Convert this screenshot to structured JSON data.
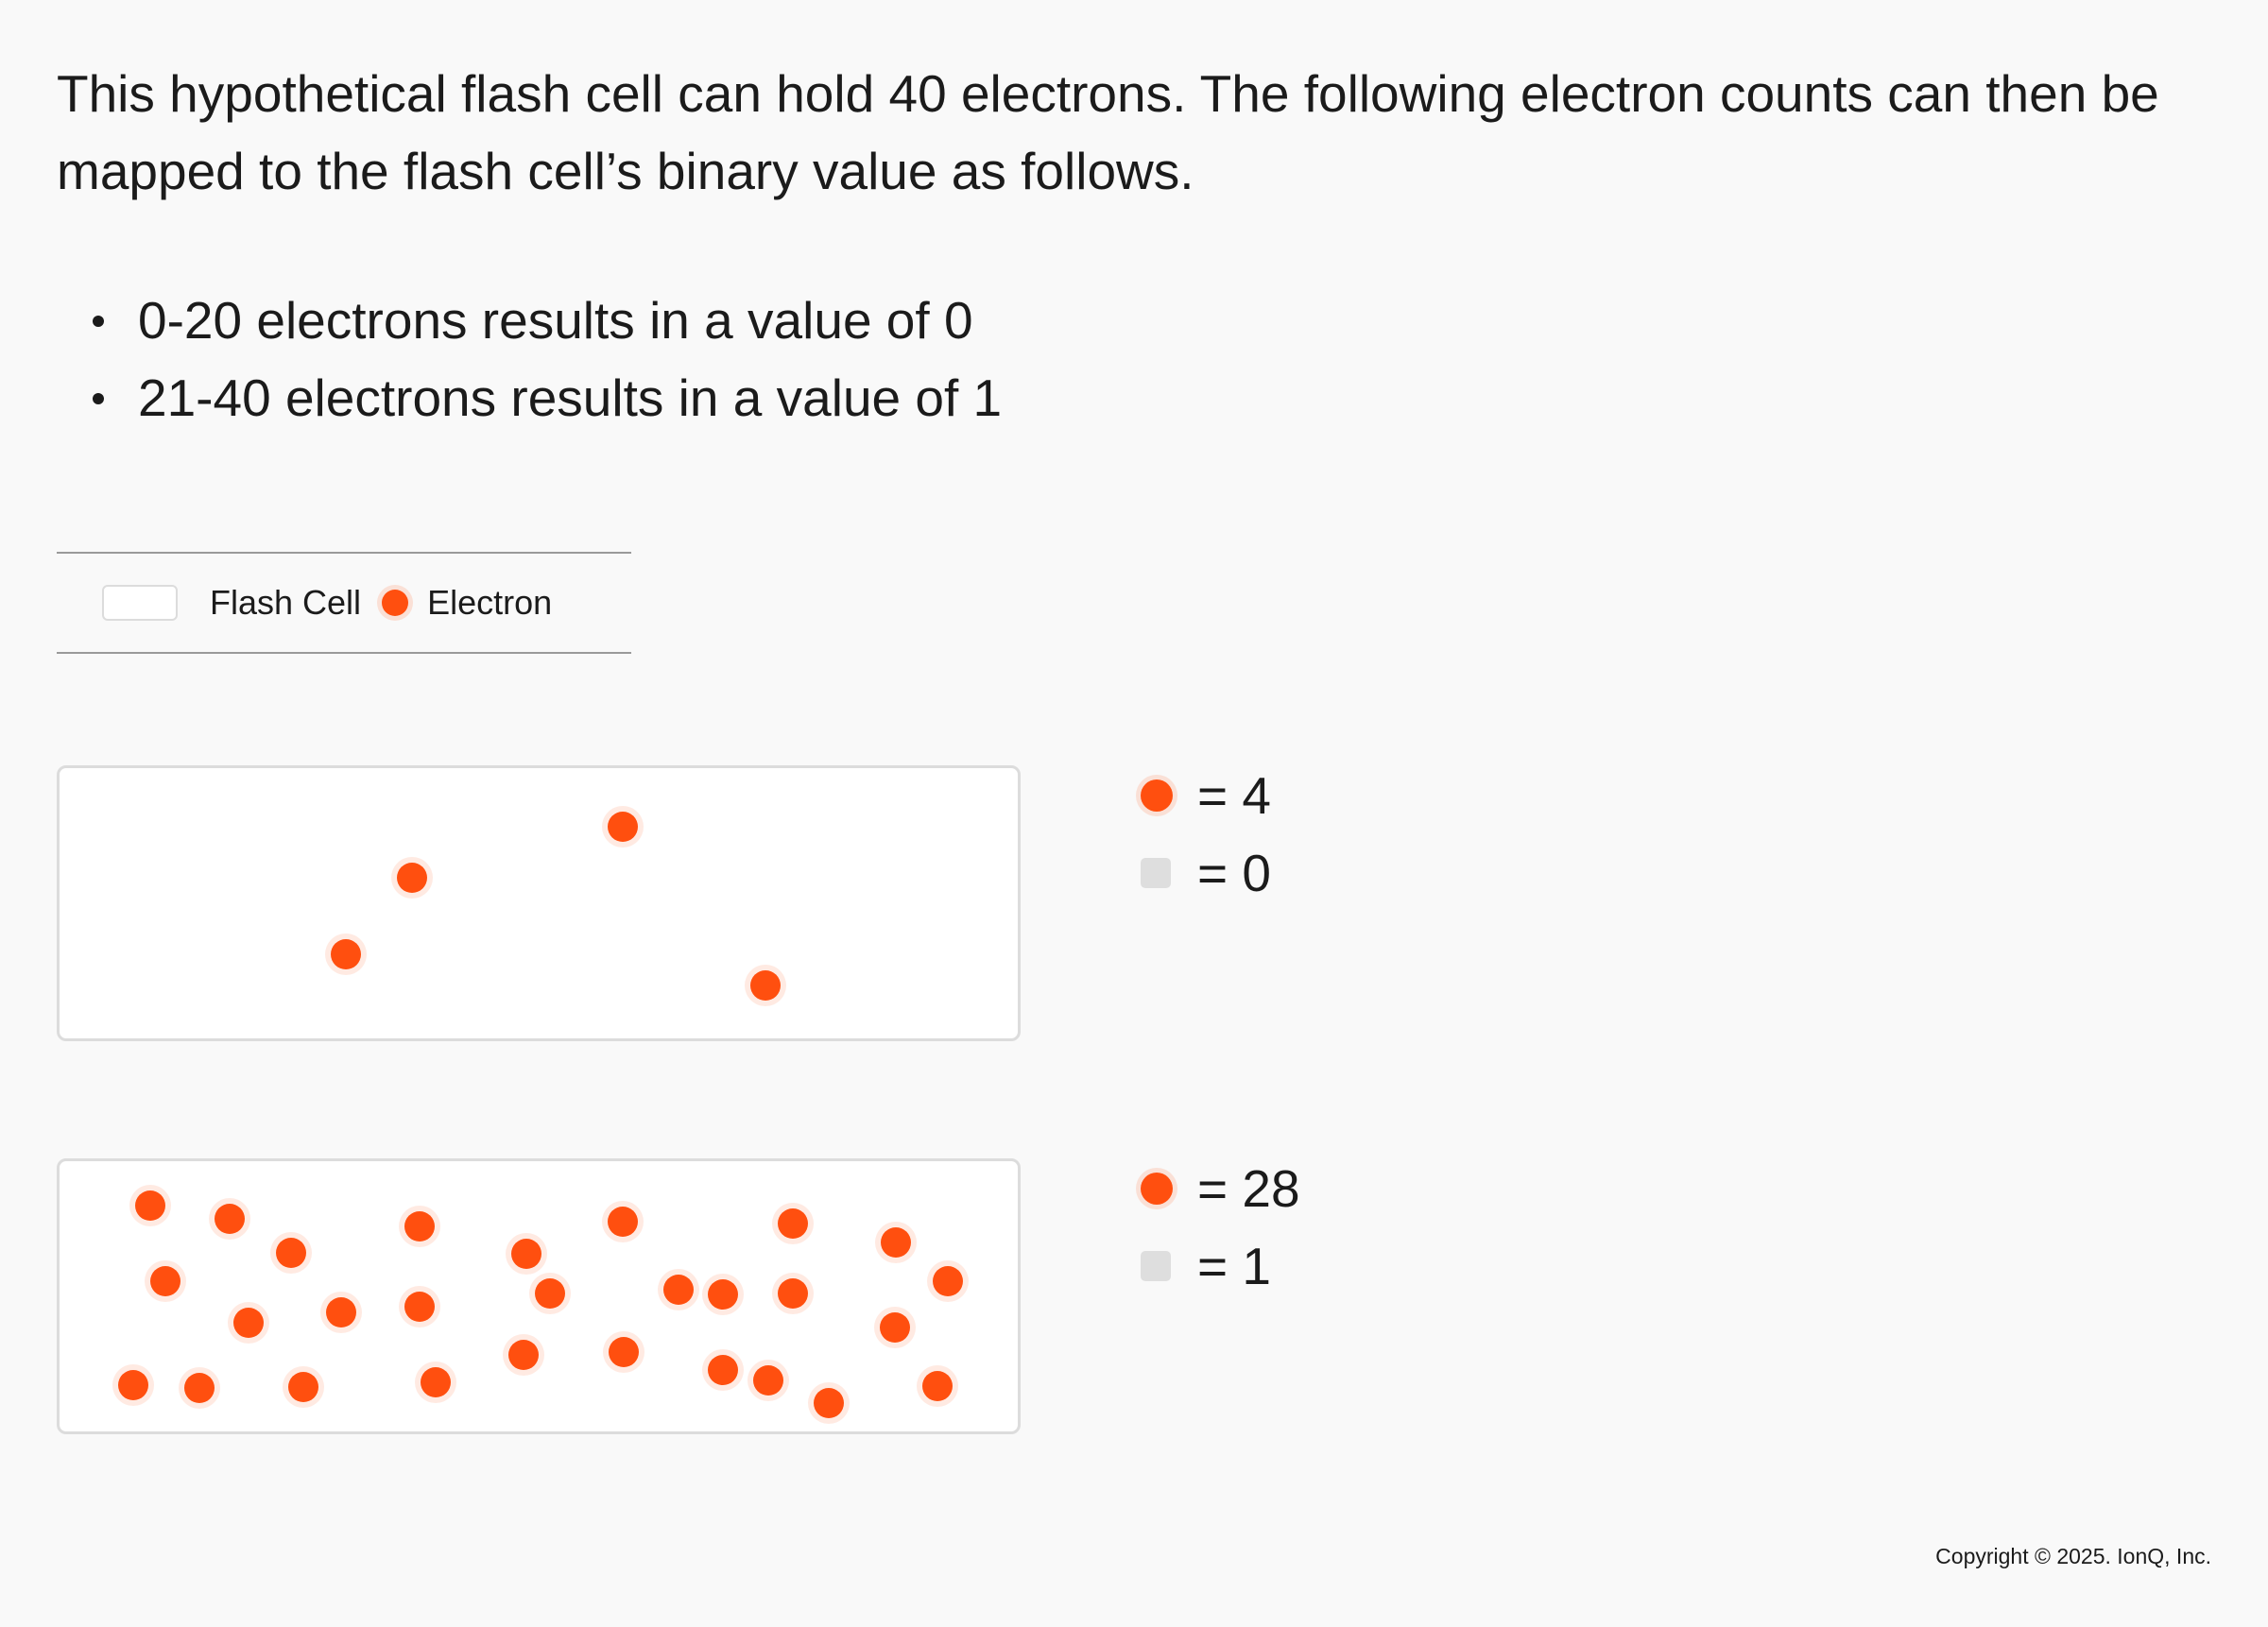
{
  "intro": "This hypothetical flash cell can hold 40 electrons.  The following electron counts can then be mapped to the flash cell’s binary value as follows.",
  "rules": [
    "0-20 electrons results in a value of 0",
    "21-40 electrons results in a value of 1"
  ],
  "legend": {
    "flash_cell_label": "Flash Cell",
    "electron_label": "Electron"
  },
  "colors": {
    "electron": "#ff4f0f",
    "cell_border": "#dcdcdc",
    "bit_swatch": "#dedede"
  },
  "cells": [
    {
      "electron_count_text": "= 4",
      "binary_value_text": "= 0",
      "electron_count": 4
    },
    {
      "electron_count_text": "= 28",
      "binary_value_text": "= 1",
      "electron_count": 28
    }
  ],
  "copyright": "Copyright © 2025. IonQ, Inc."
}
